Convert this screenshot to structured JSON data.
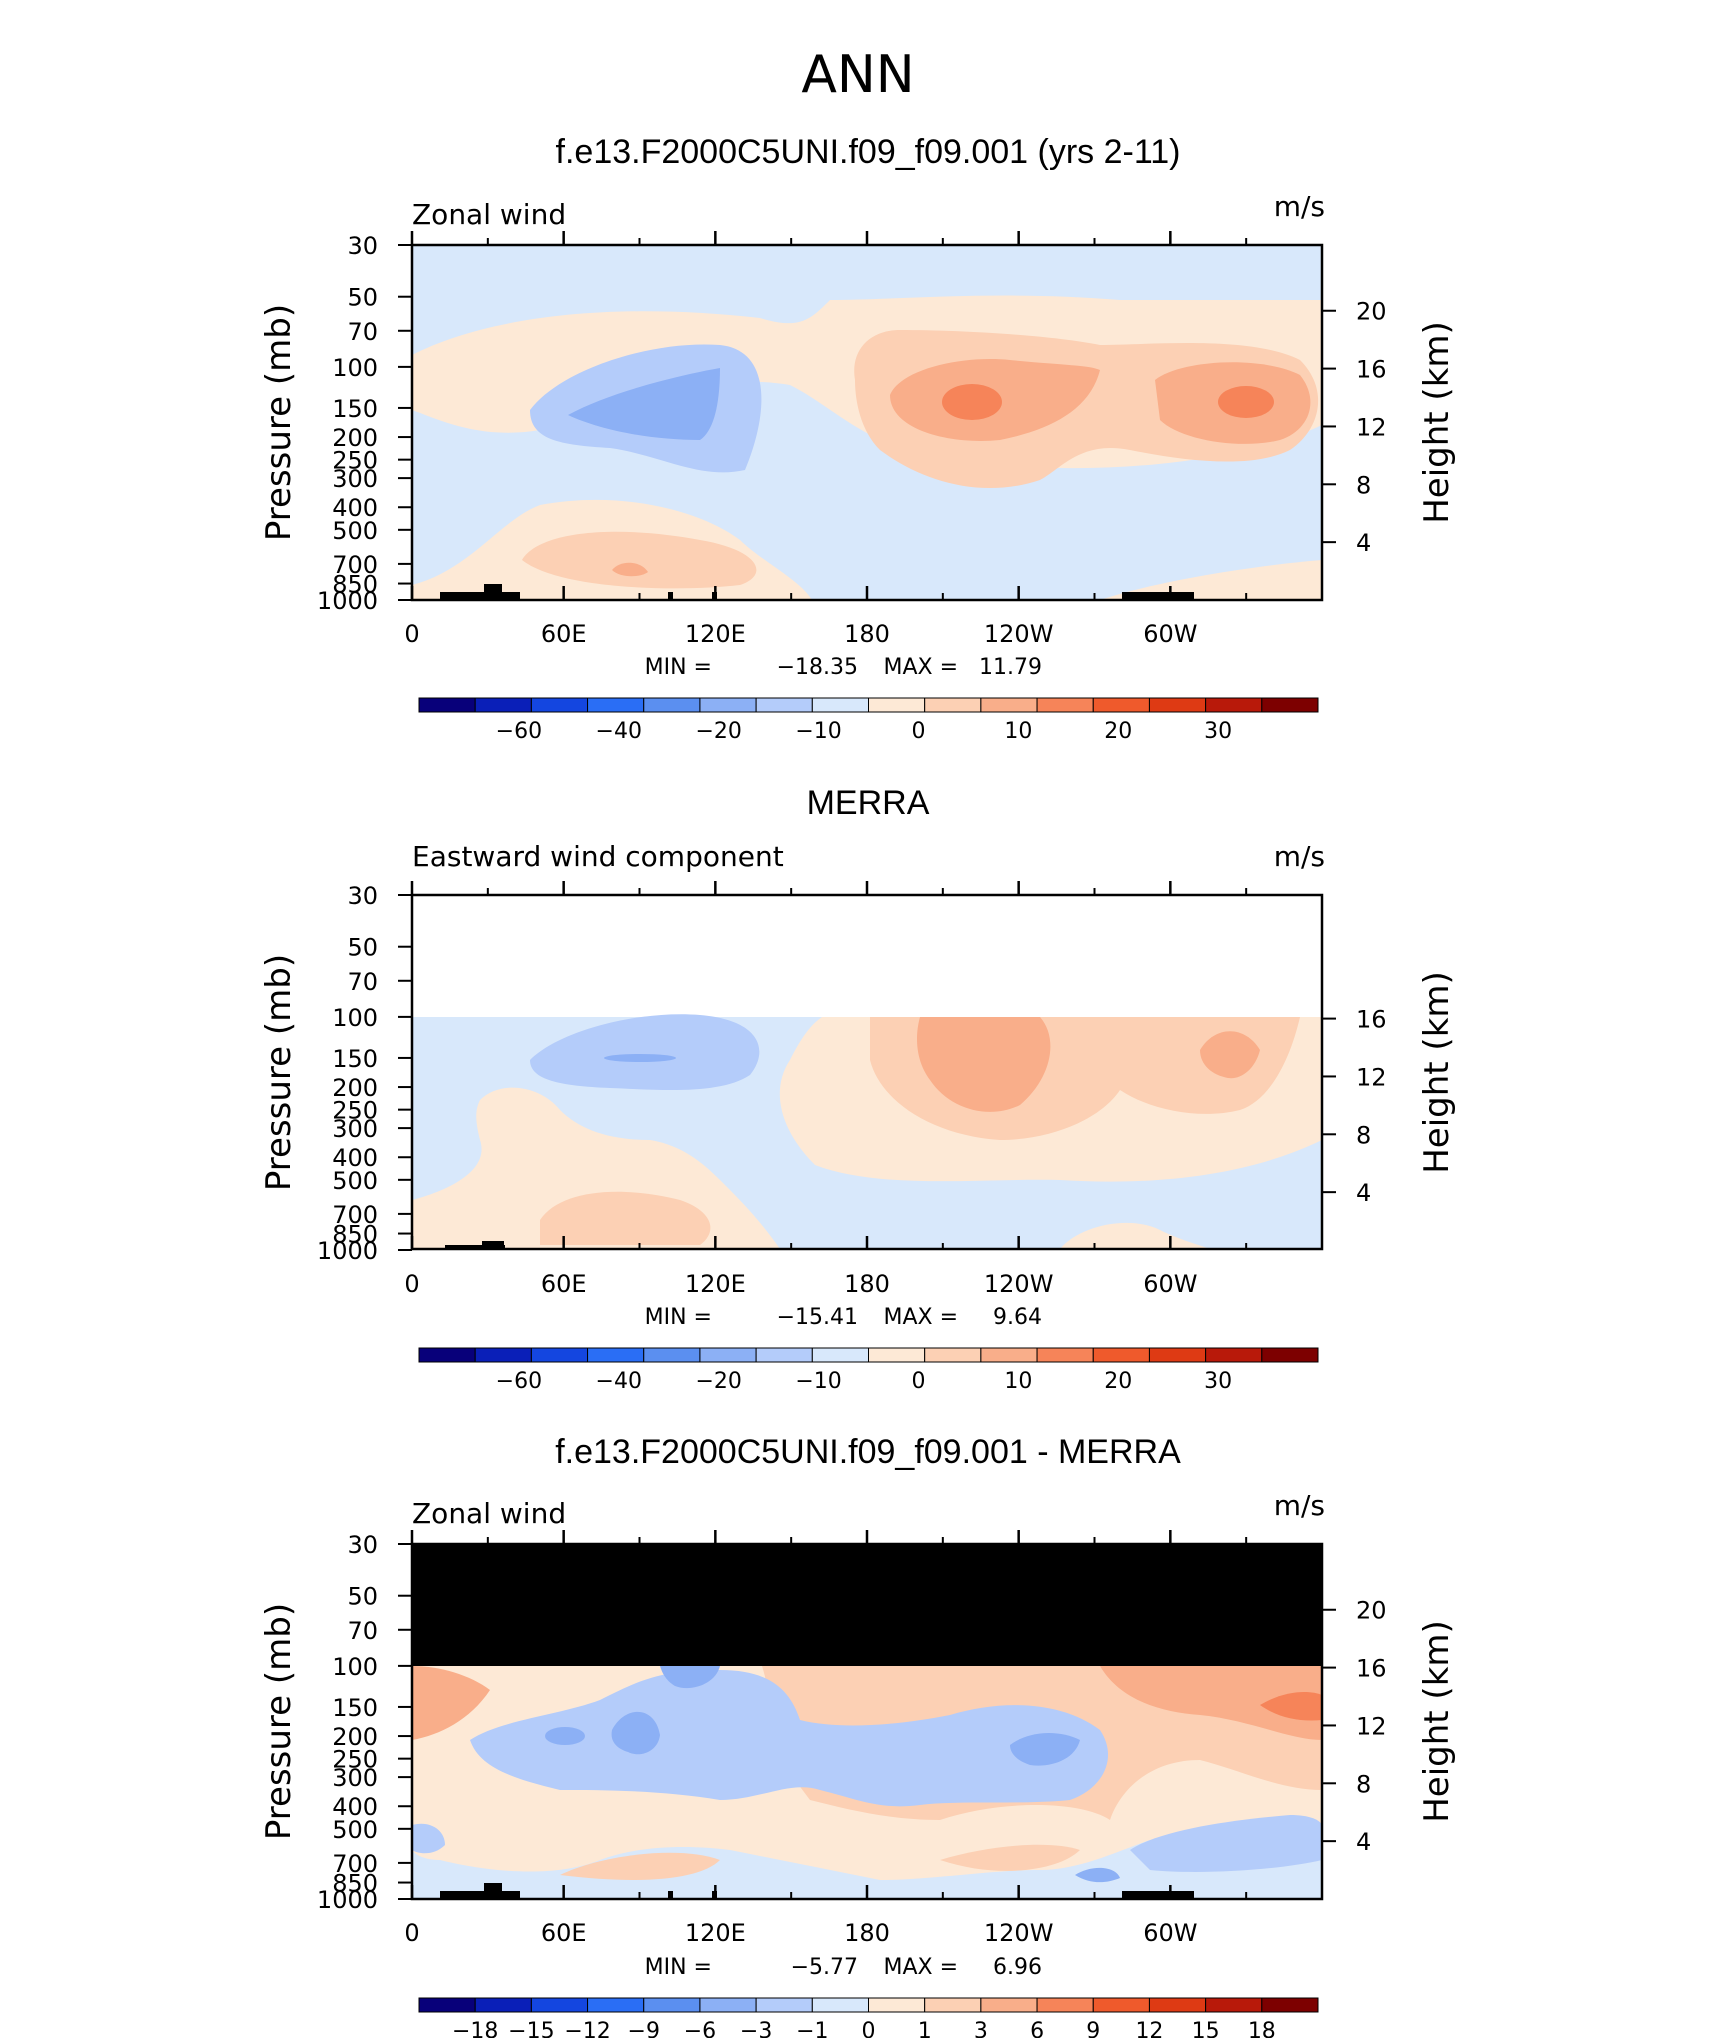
{
  "page": {
    "title": "ANN"
  },
  "colors": {
    "level_scale": [
      "#08007a",
      "#0a1fb8",
      "#1446e0",
      "#2a6ef5",
      "#5b8ff0",
      "#8cb0f5",
      "#b4ccfa",
      "#d8e8fb",
      "#fde9d6",
      "#fcd0b4",
      "#f9ae8a",
      "#f68459",
      "#ef5a2c",
      "#de3a14",
      "#b8190a",
      "#7d0000"
    ]
  },
  "chart_data": [
    {
      "type": "heatmap",
      "title": "f.e13.F2000C5UNI.f09_f09.001 (yrs 2-11)",
      "left_label": "Zonal wind",
      "units": "m/s",
      "ylabel": "Pressure (mb)",
      "y2label": "Height (km)",
      "x_ticks": [
        "0",
        "60E",
        "120E",
        "180",
        "120W",
        "60W"
      ],
      "y_ticks": [
        "30",
        "50",
        "70",
        "100",
        "150",
        "200",
        "250",
        "300",
        "400",
        "500",
        "700",
        "850",
        "1000"
      ],
      "y2_ticks": [
        "20",
        "16",
        "12",
        "8",
        "4"
      ],
      "min_label": "MIN =",
      "min_value": "−18.35",
      "max_label": "MAX =",
      "max_value": "11.79",
      "colorbar_labels": [
        "−60",
        "−40",
        "−20",
        "−10",
        "0",
        "10",
        "20",
        "30"
      ],
      "ylim": [
        1000,
        30
      ],
      "data_range": [
        -18.35,
        11.79
      ]
    },
    {
      "type": "heatmap",
      "title": "MERRA",
      "left_label": "Eastward wind component",
      "units": "m/s",
      "ylabel": "Pressure (mb)",
      "y2label": "Height (km)",
      "x_ticks": [
        "0",
        "60E",
        "120E",
        "180",
        "120W",
        "60W"
      ],
      "y_ticks": [
        "30",
        "50",
        "70",
        "100",
        "150",
        "200",
        "250",
        "300",
        "400",
        "500",
        "700",
        "850",
        "1000"
      ],
      "y2_ticks": [
        "16",
        "12",
        "8",
        "4"
      ],
      "min_label": "MIN =",
      "min_value": "−15.41",
      "max_label": "MAX =",
      "max_value": "9.64",
      "colorbar_labels": [
        "−60",
        "−40",
        "−20",
        "−10",
        "0",
        "10",
        "20",
        "30"
      ],
      "ylim": [
        1000,
        30
      ],
      "data_range": [
        -15.41,
        9.64
      ]
    },
    {
      "type": "heatmap",
      "title": "f.e13.F2000C5UNI.f09_f09.001 - MERRA",
      "left_label": "Zonal wind",
      "units": "m/s",
      "ylabel": "Pressure (mb)",
      "y2label": "Height (km)",
      "x_ticks": [
        "0",
        "60E",
        "120E",
        "180",
        "120W",
        "60W"
      ],
      "y_ticks": [
        "30",
        "50",
        "70",
        "100",
        "150",
        "200",
        "250",
        "300",
        "400",
        "500",
        "700",
        "850",
        "1000"
      ],
      "y2_ticks": [
        "20",
        "16",
        "12",
        "8",
        "4"
      ],
      "min_label": "MIN =",
      "min_value": "−5.77",
      "max_label": "MAX =",
      "max_value": "6.96",
      "colorbar_labels": [
        "−18",
        "−15",
        "−12",
        "−9",
        "−6",
        "−3",
        "−1",
        "0",
        "1",
        "3",
        "6",
        "9",
        "12",
        "15",
        "18"
      ],
      "ylim": [
        1000,
        30
      ],
      "data_range": [
        -5.77,
        6.96
      ]
    }
  ]
}
